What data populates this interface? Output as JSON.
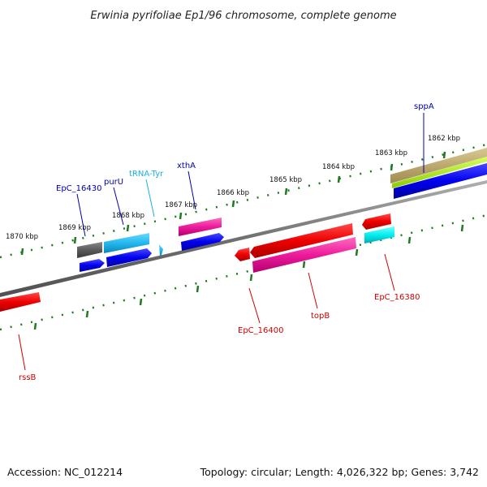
{
  "header": {
    "title": "Erwinia pyrifoliae Ep1/96 chromosome, complete genome"
  },
  "footer": {
    "accession": "Accession: NC_012214",
    "topology": "Topology: circular; Length: 4,026,322 bp; Genes: 3,742"
  },
  "ticks": [
    "1862 kbp",
    "1863 kbp",
    "1864 kbp",
    "1865 kbp",
    "1866 kbp",
    "1867 kbp",
    "1868 kbp",
    "1869 kbp",
    "1870 kbp"
  ],
  "colors": {
    "backbone": "#808080",
    "tick": "#1e7a1e",
    "forward_label": "#0000aa",
    "reverse_label": "#cc0000",
    "trna_label": "#1ab0e0"
  },
  "forward_labels": [
    "sppA",
    "xthA",
    "tRNA-Tyr",
    "purU",
    "EpC_16430"
  ],
  "reverse_labels": [
    "EpC_16380",
    "topB",
    "EpC_16400",
    "rssB"
  ]
}
